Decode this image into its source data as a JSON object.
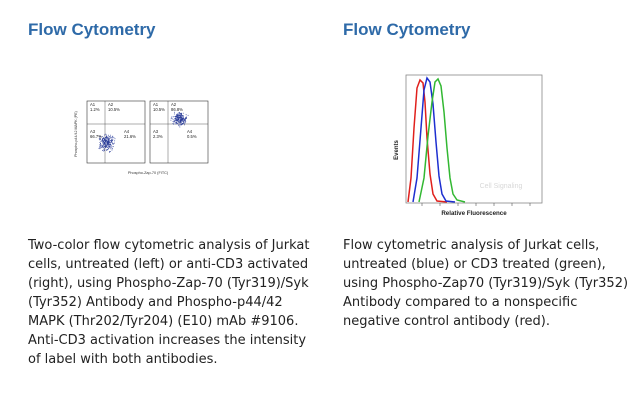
{
  "panels": [
    {
      "heading": "Flow Cytometry",
      "caption": "Two-color flow cytometric analysis of Jurkat cells, untreated (left) or anti-CD3 activated (right), using Phospho-Zap-70 (Tyr319)/Syk (Tyr352) Antibody and Phospho-p44/42 MAPK (Thr202/Tyr204) (E10) mAb #9106. Anti-CD3 activation increases the intensity of label with both antibodies.",
      "figure": {
        "ylabel": "Phospho-p44/42 MAPK (PE)",
        "xlabel": "Phospho-Zap-70 (FITC)",
        "plots": [
          {
            "quadrants": [
              {
                "label": "A1",
                "value": "1.2%"
              },
              {
                "label": "A2",
                "value": "10.5%"
              },
              {
                "label": "A3",
                "value": "66.7%"
              },
              {
                "label": "A4",
                "value": "21.6%"
              }
            ]
          },
          {
            "quadrants": [
              {
                "label": "A1",
                "value": "10.5%"
              },
              {
                "label": "A2",
                "value": "86.8%"
              },
              {
                "label": "A3",
                "value": "2.3%"
              },
              {
                "label": "A4",
                "value": "0.5%"
              }
            ]
          }
        ]
      }
    },
    {
      "heading": "Flow Cytometry",
      "caption": "Flow cytometric analysis of Jurkat cells, untreated (blue) or CD3 treated (green), using Phospho-Zap70 (Tyr319)/Syk (Tyr352) Antibody compared to a nonspecific negative control antibody (red).",
      "figure": {
        "ylabel": "Events",
        "xlabel": "Relative Fluorescence",
        "watermark": "Cell Signaling",
        "series_colors": {
          "untreated": "#1d2fd0",
          "cd3_treated": "#32b832",
          "control": "#e0201c"
        }
      }
    }
  ],
  "colors": {
    "heading": "#2e6aa8",
    "text": "#222222",
    "dots": "#2c3e9a"
  }
}
